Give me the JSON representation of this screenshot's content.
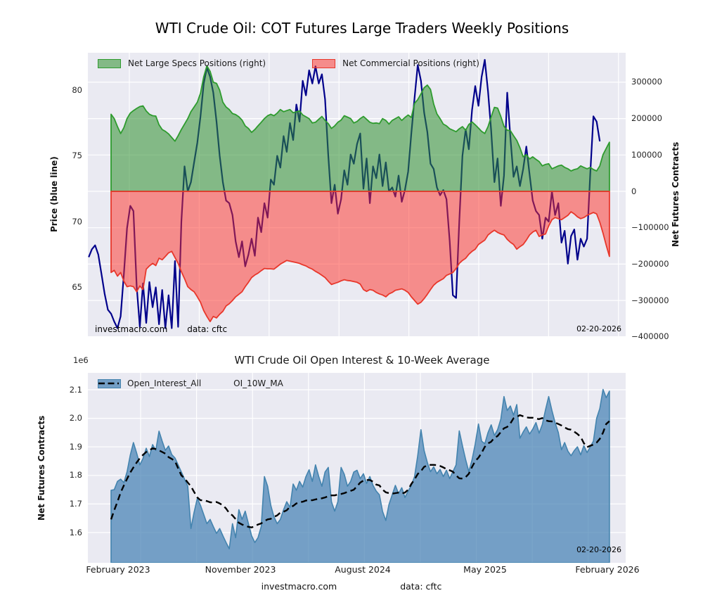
{
  "figure": {
    "title": "WTI Crude Oil: COT Futures Large Traders Weekly Positions",
    "background": "#ffffff",
    "axes_background": "#eaeaf2",
    "grid_color": "#ffffff"
  },
  "branding": {
    "site": "investmacro.com",
    "source": "data: cftc",
    "report_date": "02-20-2026"
  },
  "chart_data": [
    {
      "type": "area",
      "subtype": "dual-axis price line over net positions areas",
      "title": "",
      "legend": [
        {
          "label": "Net Large Specs Positions (right)",
          "swatch": "green-area"
        },
        {
          "label": "Net Commercial Positions (right)",
          "swatch": "red-area"
        }
      ],
      "ylabel_left": "Price (blue line)",
      "ylabel_right": "Net Futures Contracts",
      "ylim_left": [
        61.3,
        82.8
      ],
      "ylim_right": [
        -398000,
        381000
      ],
      "grid": true,
      "x_is_weekly": true,
      "x_start": "February 2023",
      "x_end": "February 2026",
      "yticks_left": [
        {
          "value": 80,
          "label": "80"
        },
        {
          "value": 75,
          "label": "75"
        },
        {
          "value": 70,
          "label": "70"
        },
        {
          "value": 65,
          "label": "65"
        }
      ],
      "yticks_right": [
        {
          "value": 300,
          "label": "300000"
        },
        {
          "value": 200,
          "label": "200000"
        },
        {
          "value": 100,
          "label": "100000"
        },
        {
          "value": 0,
          "label": "0"
        },
        {
          "value": -100,
          "label": "−100000"
        },
        {
          "value": -200,
          "label": "−200000"
        },
        {
          "value": -300,
          "label": "−300000"
        },
        {
          "value": -400,
          "label": "−400000"
        }
      ],
      "annotations": {
        "left": "investmacro.com",
        "mid": "data: cftc",
        "right": "02-20-2026"
      },
      "series": [
        {
          "name": "WTI Price",
          "type": "line",
          "axis": "left",
          "color": "#00008b",
          "width": 2.2,
          "lead_weeks": 7,
          "values": [
            67.3,
            67.9,
            68.2,
            67.5,
            66.0,
            64.5,
            63.3,
            63.0,
            62.4,
            61.9,
            62.8,
            66.0,
            69.5,
            71.2,
            70.8,
            65.1,
            62.0,
            65.3,
            62.3,
            65.4,
            63.5,
            65.0,
            62.2,
            64.8,
            61.9,
            64.4,
            61.9,
            67.0,
            62.0,
            70.0,
            74.2,
            72.3,
            73.0,
            74.5,
            76.0,
            78.0,
            80.5,
            81.7,
            81.0,
            79.8,
            77.6,
            75.0,
            73.0,
            71.6,
            71.4,
            70.5,
            68.5,
            67.3,
            68.5,
            66.6,
            67.5,
            68.7,
            67.4,
            70.3,
            69.2,
            71.4,
            70.3,
            73.2,
            72.8,
            75.0,
            74.1,
            76.5,
            75.3,
            77.5,
            76.2,
            78.9,
            77.6,
            80.7,
            79.6,
            81.5,
            80.5,
            81.8,
            80.5,
            81.2,
            79.3,
            75.0,
            71.4,
            72.8,
            70.6,
            71.7,
            73.9,
            72.8,
            75.1,
            74.4,
            75.9,
            76.7,
            72.5,
            74.8,
            71.4,
            74.2,
            73.3,
            75.1,
            72.7,
            74.5,
            72.3,
            72.6,
            71.9,
            73.5,
            71.5,
            72.4,
            73.8,
            76.7,
            79.4,
            81.9,
            80.7,
            78.3,
            76.8,
            74.4,
            74.0,
            72.6,
            72.0,
            72.4,
            71.7,
            68.5,
            64.4,
            64.2,
            70.0,
            75.0,
            77.0,
            75.5,
            78.5,
            80.3,
            78.8,
            81.0,
            82.3,
            79.9,
            76.9,
            73.0,
            74.8,
            71.2,
            73.5,
            79.8,
            76.4,
            73.4,
            74.2,
            72.7,
            74.0,
            75.7,
            73.6,
            71.6,
            70.8,
            70.5,
            68.7,
            70.3,
            70.0,
            72.3,
            70.5,
            71.4,
            68.4,
            69.3,
            66.8,
            68.9,
            69.4,
            67.1,
            68.7,
            68.1,
            68.7,
            73.6,
            78.0,
            77.6,
            76.1
          ]
        },
        {
          "name": "Net Large Specs Positions",
          "type": "area",
          "axis": "right",
          "unit_thousands": true,
          "edge_color": "#2e9b2e",
          "fill_color": "#2d8f2d",
          "fill_opacity": 0.55,
          "values": [
            212,
            200,
            178,
            159,
            175,
            200,
            215,
            222,
            228,
            233,
            235,
            221,
            212,
            208,
            207,
            183,
            170,
            165,
            158,
            148,
            138,
            153,
            170,
            185,
            200,
            219,
            232,
            245,
            270,
            315,
            345,
            330,
            300,
            297,
            278,
            245,
            232,
            225,
            214,
            211,
            205,
            196,
            180,
            173,
            162,
            170,
            180,
            190,
            200,
            208,
            212,
            208,
            215,
            225,
            219,
            222,
            225,
            216,
            219,
            221,
            210,
            205,
            200,
            188,
            190,
            198,
            206,
            195,
            186,
            173,
            180,
            190,
            196,
            208,
            204,
            200,
            188,
            192,
            200,
            206,
            198,
            190,
            187,
            188,
            186,
            200,
            195,
            185,
            195,
            200,
            205,
            195,
            203,
            210,
            203,
            242,
            252,
            268,
            285,
            292,
            280,
            240,
            213,
            200,
            185,
            180,
            172,
            168,
            164,
            172,
            178,
            168,
            184,
            191,
            183,
            174,
            165,
            159,
            178,
            205,
            231,
            229,
            206,
            179,
            168,
            167,
            153,
            140,
            120,
            95,
            101,
            89,
            95,
            88,
            82,
            70,
            74,
            76,
            62,
            66,
            70,
            72,
            66,
            62,
            56,
            60,
            62,
            70,
            66,
            62,
            66,
            60,
            56,
            70,
            101,
            118,
            135
          ]
        },
        {
          "name": "Net Commercial Positions",
          "type": "area",
          "axis": "right",
          "unit_thousands": true,
          "edge_color": "#e8372b",
          "fill_color": "#ff2d23",
          "fill_opacity": 0.5,
          "values": [
            -223,
            -217,
            -233,
            -223,
            -247,
            -262,
            -260,
            -262,
            -276,
            -260,
            -270,
            -214,
            -205,
            -198,
            -204,
            -184,
            -188,
            -179,
            -169,
            -165,
            -182,
            -198,
            -221,
            -240,
            -262,
            -270,
            -276,
            -290,
            -305,
            -328,
            -344,
            -358,
            -344,
            -348,
            -338,
            -330,
            -315,
            -309,
            -300,
            -290,
            -283,
            -276,
            -262,
            -250,
            -237,
            -230,
            -225,
            -218,
            -212,
            -213,
            -213,
            -214,
            -207,
            -200,
            -195,
            -190,
            -192,
            -194,
            -196,
            -198,
            -202,
            -205,
            -210,
            -214,
            -220,
            -225,
            -231,
            -237,
            -247,
            -256,
            -253,
            -250,
            -246,
            -243,
            -245,
            -246,
            -248,
            -250,
            -255,
            -270,
            -275,
            -270,
            -272,
            -278,
            -282,
            -285,
            -290,
            -282,
            -278,
            -272,
            -270,
            -268,
            -272,
            -278,
            -290,
            -300,
            -310,
            -305,
            -295,
            -283,
            -270,
            -258,
            -250,
            -245,
            -240,
            -231,
            -227,
            -223,
            -212,
            -198,
            -190,
            -184,
            -173,
            -165,
            -159,
            -146,
            -140,
            -134,
            -120,
            -113,
            -107,
            -113,
            -117,
            -120,
            -132,
            -140,
            -146,
            -159,
            -152,
            -146,
            -134,
            -120,
            -112,
            -107,
            -124,
            -120,
            -117,
            -95,
            -78,
            -72,
            -75,
            -78,
            -72,
            -66,
            -56,
            -62,
            -70,
            -75,
            -72,
            -66,
            -62,
            -58,
            -62,
            -85,
            -115,
            -148,
            -179
          ]
        }
      ]
    },
    {
      "type": "area",
      "title": "WTI Crude Oil Open Interest & 10-Week Average",
      "legend": [
        {
          "label": "Open_Interest_All",
          "swatch": "blue-area"
        },
        {
          "label": "OI_10W_MA",
          "swatch": "black-dashed"
        }
      ],
      "ylabel_left": "Net Futures Contracts",
      "offset_text": "1e6",
      "ylim": [
        1.494,
        2.159
      ],
      "grid": true,
      "yticks_left": [
        {
          "value": 2.1,
          "label": "2.1"
        },
        {
          "value": 2.0,
          "label": "2.0"
        },
        {
          "value": 1.9,
          "label": "1.9"
        },
        {
          "value": 1.8,
          "label": "1.8"
        },
        {
          "value": 1.7,
          "label": "1.7"
        },
        {
          "value": 1.6,
          "label": "1.6"
        }
      ],
      "xticks": [
        {
          "label": "February 2023"
        },
        {
          "label": "November 2023"
        },
        {
          "label": "August 2024"
        },
        {
          "label": "May 2025"
        },
        {
          "label": "February 2026"
        }
      ],
      "annotations": {
        "right": "02-20-2026"
      },
      "series": [
        {
          "name": "Open_Interest_All",
          "type": "area",
          "unit": "millions",
          "edge_color": "#4383ae",
          "fill_color": "#4682b4",
          "fill_opacity": 0.72,
          "values": [
            1.748,
            1.75,
            1.779,
            1.787,
            1.775,
            1.812,
            1.871,
            1.915,
            1.878,
            1.837,
            1.859,
            1.895,
            1.866,
            1.908,
            1.888,
            1.955,
            1.92,
            1.888,
            1.903,
            1.873,
            1.861,
            1.837,
            1.812,
            1.787,
            1.762,
            1.614,
            1.671,
            1.72,
            1.695,
            1.663,
            1.631,
            1.646,
            1.621,
            1.597,
            1.614,
            1.589,
            1.565,
            1.543,
            1.631,
            1.582,
            1.68,
            1.646,
            1.675,
            1.631,
            1.589,
            1.565,
            1.582,
            1.621,
            1.796,
            1.762,
            1.695,
            1.655,
            1.631,
            1.646,
            1.68,
            1.708,
            1.688,
            1.77,
            1.748,
            1.779,
            1.759,
            1.796,
            1.82,
            1.779,
            1.837,
            1.796,
            1.762,
            1.812,
            1.828,
            1.708,
            1.675,
            1.708,
            1.828,
            1.804,
            1.762,
            1.779,
            1.812,
            1.818,
            1.789,
            1.806,
            1.772,
            1.796,
            1.765,
            1.745,
            1.732,
            1.674,
            1.642,
            1.698,
            1.732,
            1.765,
            1.736,
            1.757,
            1.723,
            1.745,
            1.765,
            1.796,
            1.869,
            1.96,
            1.887,
            1.845,
            1.813,
            1.83,
            1.806,
            1.821,
            1.796,
            1.818,
            1.789,
            1.813,
            1.837,
            1.956,
            1.904,
            1.855,
            1.813,
            1.855,
            1.91,
            1.98,
            1.92,
            1.911,
            1.95,
            1.977,
            1.94,
            1.96,
            1.997,
            2.076,
            2.027,
            2.043,
            2.011,
            2.048,
            1.93,
            1.952,
            1.97,
            1.945,
            1.962,
            1.985,
            1.948,
            1.978,
            2.03,
            2.076,
            2.027,
            1.985,
            1.95,
            1.89,
            1.915,
            1.885,
            1.869,
            1.887,
            1.9,
            1.872,
            1.904,
            1.88,
            1.9,
            1.92,
            2.0,
            2.034,
            2.101,
            2.072,
            2.095
          ]
        },
        {
          "name": "OI_10W_MA",
          "type": "dashed-line",
          "unit": "millions",
          "color": "#000000",
          "width": 2.4,
          "values": [
            1.646,
            1.678,
            1.708,
            1.74,
            1.765,
            1.788,
            1.81,
            1.828,
            1.845,
            1.86,
            1.872,
            1.882,
            1.888,
            1.895,
            1.892,
            1.888,
            1.882,
            1.876,
            1.864,
            1.858,
            1.85,
            1.825,
            1.8,
            1.79,
            1.775,
            1.762,
            1.742,
            1.723,
            1.713,
            1.713,
            1.71,
            1.706,
            1.705,
            1.707,
            1.702,
            1.695,
            1.684,
            1.668,
            1.66,
            1.647,
            1.634,
            1.628,
            1.624,
            1.62,
            1.618,
            1.622,
            1.628,
            1.632,
            1.64,
            1.646,
            1.648,
            1.655,
            1.66,
            1.67,
            1.673,
            1.678,
            1.69,
            1.693,
            1.702,
            1.706,
            1.708,
            1.712,
            1.713,
            1.713,
            1.716,
            1.718,
            1.72,
            1.723,
            1.727,
            1.73,
            1.73,
            1.733,
            1.735,
            1.738,
            1.742,
            1.746,
            1.75,
            1.762,
            1.775,
            1.782,
            1.784,
            1.784,
            1.778,
            1.768,
            1.765,
            1.75,
            1.741,
            1.738,
            1.736,
            1.738,
            1.74,
            1.737,
            1.74,
            1.75,
            1.77,
            1.786,
            1.805,
            1.815,
            1.83,
            1.835,
            1.837,
            1.837,
            1.836,
            1.833,
            1.828,
            1.822,
            1.818,
            1.813,
            1.8,
            1.79,
            1.789,
            1.794,
            1.806,
            1.83,
            1.85,
            1.862,
            1.879,
            1.9,
            1.912,
            1.918,
            1.932,
            1.938,
            1.952,
            1.965,
            1.97,
            1.982,
            2.0,
            2.005,
            2.011,
            2.007,
            2.003,
            2.002,
            2.002,
            1.999,
            1.997,
            2.001,
            1.993,
            1.99,
            1.989,
            1.985,
            1.98,
            1.975,
            1.968,
            1.962,
            1.96,
            1.953,
            1.945,
            1.935,
            1.913,
            1.899,
            1.904,
            1.908,
            1.915,
            1.928,
            1.95,
            1.98,
            1.99
          ]
        }
      ]
    }
  ]
}
